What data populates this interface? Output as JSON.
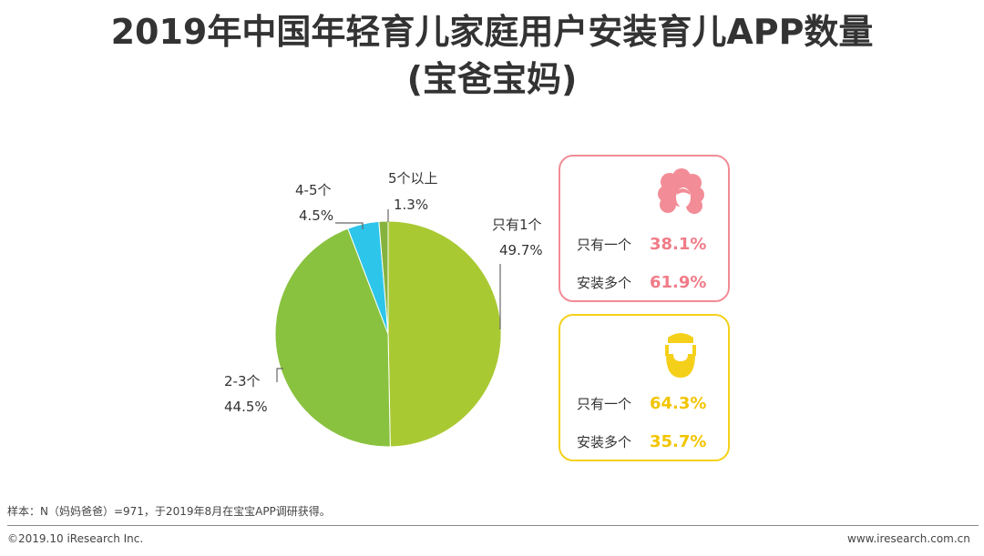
{
  "title": {
    "line1": "2019年中国年轻育儿家庭用户安装育儿APP数量",
    "line2": "(宝爸宝妈)"
  },
  "chart_data": {
    "type": "pie",
    "title": "2019年中国年轻育儿家庭用户安装育儿APP数量(宝爸宝妈)",
    "start": "12 o'clock, clockwise",
    "slices": [
      {
        "name": "只有1个",
        "value": 49.7,
        "label": "49.7%",
        "color": "#A9C932"
      },
      {
        "name": "2-3个",
        "value": 44.5,
        "label": "44.5%",
        "color": "#89C23F"
      },
      {
        "name": "4-5个",
        "value": 4.5,
        "label": "4.5%",
        "color": "#2EC5EA"
      },
      {
        "name": "5个以上",
        "value": 1.3,
        "label": "1.3%",
        "color": "#86B33E"
      }
    ]
  },
  "cards": {
    "mom": {
      "icon": "woman-icon",
      "accent": "#F28C96",
      "rows": [
        {
          "label": "只有一个",
          "value": "38.1%"
        },
        {
          "label": "安装多个",
          "value": "61.9%"
        }
      ]
    },
    "dad": {
      "icon": "bearded-man-icon",
      "accent": "#F5D01B",
      "rows": [
        {
          "label": "只有一个",
          "value": "64.3%"
        },
        {
          "label": "安装多个",
          "value": "35.7%"
        }
      ]
    }
  },
  "footer": {
    "note": "样本：N（妈妈爸爸）=971，于2019年8月在宝宝APP调研获得。",
    "copyright": "©2019.10 iResearch Inc.",
    "website": "www.iresearch.com.cn"
  }
}
